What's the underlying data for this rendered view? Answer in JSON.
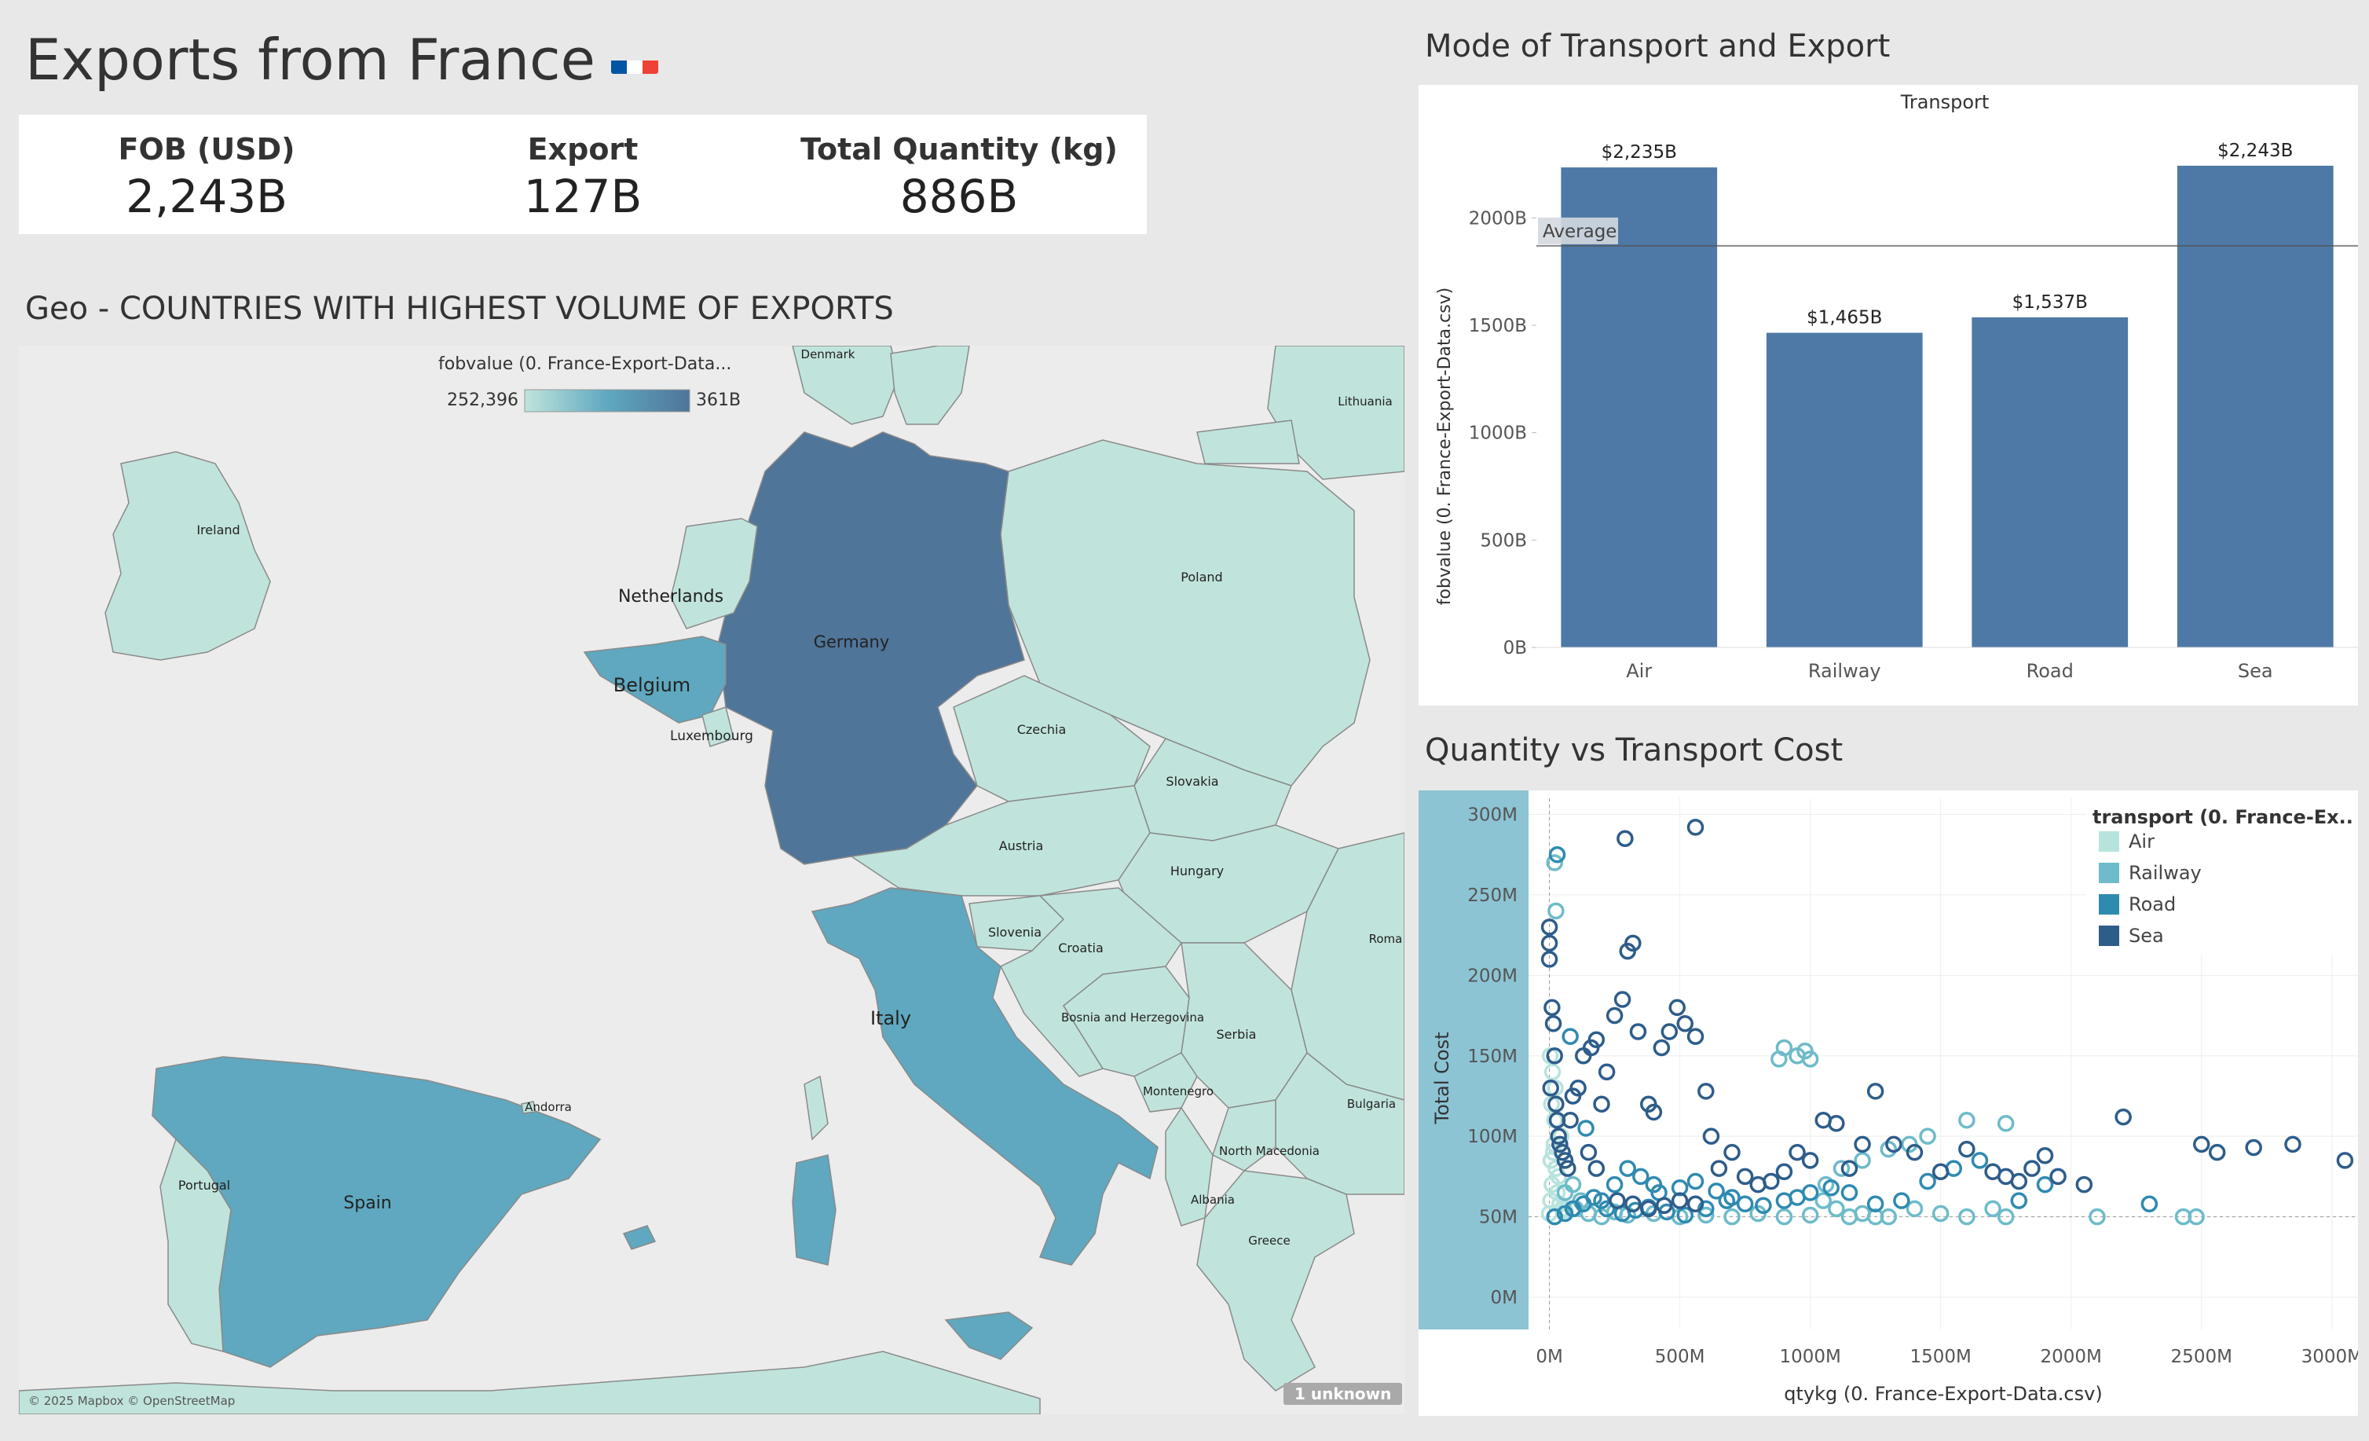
{
  "header": {
    "title": "Exports from France",
    "flag_icon": "france-flag-icon",
    "flag_colors": [
      "#0055a4",
      "#ffffff",
      "#ef4135"
    ]
  },
  "kpis": [
    {
      "label": "FOB (USD)",
      "value": "2,243B"
    },
    {
      "label": "Export",
      "value": "127B"
    },
    {
      "label": "Total Quantity (kg)",
      "value": "886B"
    }
  ],
  "map": {
    "title": "Geo - COUNTRIES WITH HIGHEST VOLUME OF EXPORTS",
    "legend_title": "fobvalue (0. France-Export-Data...",
    "legend_min": "252,396",
    "legend_max": "361B",
    "colors": {
      "low": "#c0e4dc",
      "mid": "#5fa8bf",
      "high": "#4f7599",
      "land": "#ececec",
      "border": "#8a8a8a"
    },
    "labels": {
      "denmark": "Denmark",
      "lithuania": "Lithuania",
      "ireland": "Ireland",
      "poland": "Poland",
      "netherlands": "Netherlands",
      "germany": "Germany",
      "belgium": "Belgium",
      "luxembourg": "Luxembourg",
      "czechia": "Czechia",
      "slovakia": "Slovakia",
      "austria": "Austria",
      "hungary": "Hungary",
      "slovenia": "Slovenia",
      "croatia": "Croatia",
      "romania": "Roma",
      "italy": "Italy",
      "bosnia": "Bosnia and Herzegovina",
      "serbia": "Serbia",
      "andorra": "Andorra",
      "montenegro": "Montenegro",
      "bulgaria": "Bulgaria",
      "north_macedonia": "North Macedonia",
      "portugal": "Portugal",
      "spain": "Spain",
      "albania": "Albania",
      "greece": "Greece"
    },
    "attribution": "© 2025 Mapbox © OpenStreetMap",
    "unknown_badge": "1 unknown"
  },
  "bar_chart": {
    "title": "Mode of Transport and Export",
    "chart_data": {
      "type": "bar",
      "header": "Transport",
      "categories": [
        "Air",
        "Railway",
        "Road",
        "Sea"
      ],
      "values": [
        2235,
        1465,
        1537,
        2243
      ],
      "value_labels": [
        "$2,235B",
        "$1,465B",
        "$1,537B",
        "$2,243B"
      ],
      "ylabel": "fobvalue (0. France-Export-Data.csv)",
      "yticks": [
        "0B",
        "500B",
        "1000B",
        "1500B",
        "2000B"
      ],
      "ytick_values": [
        0,
        500,
        1000,
        1500,
        2000
      ],
      "ylim": [
        0,
        2400
      ],
      "reference_line": {
        "label": "Average",
        "value": 1870
      },
      "bar_color": "#4e79a7"
    }
  },
  "scatter": {
    "title": "Quantity vs Transport Cost",
    "chart_data": {
      "type": "scatter",
      "xlabel": "qtykg (0. France-Export-Data.csv)",
      "ylabel": "Total Cost",
      "xticks": [
        "0M",
        "500M",
        "1000M",
        "1500M",
        "2000M",
        "2500M",
        "3000M"
      ],
      "xtick_values": [
        0,
        500,
        1000,
        1500,
        2000,
        2500,
        3000
      ],
      "yticks": [
        "0M",
        "50M",
        "100M",
        "150M",
        "200M",
        "250M",
        "300M"
      ],
      "ytick_values": [
        0,
        50,
        100,
        150,
        200,
        250,
        300
      ],
      "xlim": [
        -80,
        3100
      ],
      "ylim": [
        -20,
        310
      ],
      "legend_title": "transport (0. France-Ex..",
      "series": [
        {
          "name": "Air",
          "color": "#b7e3dd",
          "points": [
            [
              0,
              52
            ],
            [
              5,
              60
            ],
            [
              10,
              70
            ],
            [
              15,
              90
            ],
            [
              20,
              110
            ],
            [
              8,
              120
            ],
            [
              12,
              140
            ],
            [
              3,
              150
            ],
            [
              18,
              95
            ],
            [
              25,
              80
            ],
            [
              30,
              65
            ],
            [
              40,
              58
            ],
            [
              50,
              55
            ],
            [
              60,
              54
            ],
            [
              35,
              75
            ],
            [
              45,
              100
            ],
            [
              22,
              130
            ],
            [
              6,
              85
            ]
          ]
        },
        {
          "name": "Railway",
          "color": "#6ebbc9",
          "points": [
            [
              100,
              55
            ],
            [
              150,
              52
            ],
            [
              200,
              50
            ],
            [
              250,
              53
            ],
            [
              300,
              51
            ],
            [
              400,
              52
            ],
            [
              500,
              50
            ],
            [
              600,
              51
            ],
            [
              700,
              50
            ],
            [
              800,
              52
            ],
            [
              900,
              50
            ],
            [
              1000,
              51
            ],
            [
              1050,
              60
            ],
            [
              1100,
              55
            ],
            [
              1150,
              50
            ],
            [
              1200,
              52
            ],
            [
              1250,
              50
            ],
            [
              1300,
              50
            ],
            [
              1400,
              55
            ],
            [
              1500,
              52
            ],
            [
              1600,
              50
            ],
            [
              1700,
              55
            ],
            [
              1750,
              50
            ],
            [
              2100,
              50
            ],
            [
              2430,
              50
            ],
            [
              2480,
              50
            ],
            [
              880,
              148
            ],
            [
              900,
              155
            ],
            [
              950,
              150
            ],
            [
              980,
              153
            ],
            [
              1000,
              148
            ],
            [
              1750,
              108
            ],
            [
              1600,
              110
            ],
            [
              1450,
              100
            ],
            [
              1380,
              95
            ],
            [
              1300,
              92
            ],
            [
              1200,
              85
            ],
            [
              1120,
              80
            ],
            [
              1060,
              70
            ],
            [
              20,
              270
            ],
            [
              25,
              240
            ],
            [
              60,
              65
            ],
            [
              90,
              70
            ],
            [
              120,
              60
            ]
          ]
        },
        {
          "name": "Road",
          "color": "#2f8ab0",
          "points": [
            [
              20,
              50
            ],
            [
              60,
              52
            ],
            [
              90,
              55
            ],
            [
              130,
              58
            ],
            [
              170,
              62
            ],
            [
              220,
              55
            ],
            [
              280,
              52
            ],
            [
              330,
              54
            ],
            [
              380,
              56
            ],
            [
              450,
              53
            ],
            [
              520,
              51
            ],
            [
              600,
              55
            ],
            [
              680,
              60
            ],
            [
              750,
              58
            ],
            [
              820,
              57
            ],
            [
              900,
              60
            ],
            [
              950,
              62
            ],
            [
              1000,
              65
            ],
            [
              1080,
              68
            ],
            [
              1150,
              65
            ],
            [
              1250,
              58
            ],
            [
              1350,
              60
            ],
            [
              1450,
              72
            ],
            [
              1550,
              80
            ],
            [
              1650,
              85
            ],
            [
              1800,
              60
            ],
            [
              1900,
              70
            ],
            [
              2300,
              58
            ],
            [
              2600,
              260
            ],
            [
              200,
              60
            ],
            [
              250,
              70
            ],
            [
              300,
              80
            ],
            [
              350,
              75
            ],
            [
              400,
              70
            ],
            [
              420,
              65
            ],
            [
              500,
              68
            ],
            [
              560,
              72
            ],
            [
              640,
              66
            ],
            [
              700,
              62
            ],
            [
              30,
              275
            ],
            [
              80,
              162
            ],
            [
              140,
              105
            ]
          ]
        },
        {
          "name": "Sea",
          "color": "#2e5d8a",
          "points": [
            [
              0,
              230
            ],
            [
              0,
              220
            ],
            [
              0,
              210
            ],
            [
              10,
              180
            ],
            [
              15,
              170
            ],
            [
              20,
              150
            ],
            [
              5,
              130
            ],
            [
              25,
              120
            ],
            [
              30,
              110
            ],
            [
              35,
              100
            ],
            [
              40,
              95
            ],
            [
              50,
              90
            ],
            [
              60,
              85
            ],
            [
              70,
              80
            ],
            [
              80,
              110
            ],
            [
              90,
              125
            ],
            [
              110,
              130
            ],
            [
              130,
              150
            ],
            [
              160,
              155
            ],
            [
              180,
              160
            ],
            [
              200,
              120
            ],
            [
              220,
              140
            ],
            [
              250,
              175
            ],
            [
              280,
              185
            ],
            [
              300,
              215
            ],
            [
              320,
              220
            ],
            [
              340,
              165
            ],
            [
              380,
              120
            ],
            [
              400,
              115
            ],
            [
              430,
              155
            ],
            [
              460,
              165
            ],
            [
              490,
              180
            ],
            [
              520,
              170
            ],
            [
              560,
              162
            ],
            [
              600,
              128
            ],
            [
              620,
              100
            ],
            [
              650,
              80
            ],
            [
              700,
              90
            ],
            [
              750,
              75
            ],
            [
              800,
              70
            ],
            [
              850,
              72
            ],
            [
              900,
              78
            ],
            [
              950,
              90
            ],
            [
              1000,
              85
            ],
            [
              1050,
              110
            ],
            [
              1100,
              108
            ],
            [
              1150,
              80
            ],
            [
              1200,
              95
            ],
            [
              1250,
              128
            ],
            [
              1320,
              95
            ],
            [
              1400,
              90
            ],
            [
              1500,
              78
            ],
            [
              1600,
              92
            ],
            [
              1700,
              78
            ],
            [
              1750,
              75
            ],
            [
              1800,
              72
            ],
            [
              1850,
              80
            ],
            [
              1900,
              88
            ],
            [
              1950,
              75
            ],
            [
              2050,
              70
            ],
            [
              2200,
              112
            ],
            [
              2500,
              95
            ],
            [
              2560,
              90
            ],
            [
              2700,
              93
            ],
            [
              2850,
              95
            ],
            [
              3050,
              85
            ],
            [
              290,
              285
            ],
            [
              560,
              292
            ],
            [
              150,
              90
            ],
            [
              180,
              80
            ],
            [
              260,
              60
            ],
            [
              320,
              58
            ],
            [
              380,
              55
            ],
            [
              440,
              57
            ],
            [
              500,
              60
            ],
            [
              560,
              58
            ]
          ]
        }
      ]
    }
  }
}
